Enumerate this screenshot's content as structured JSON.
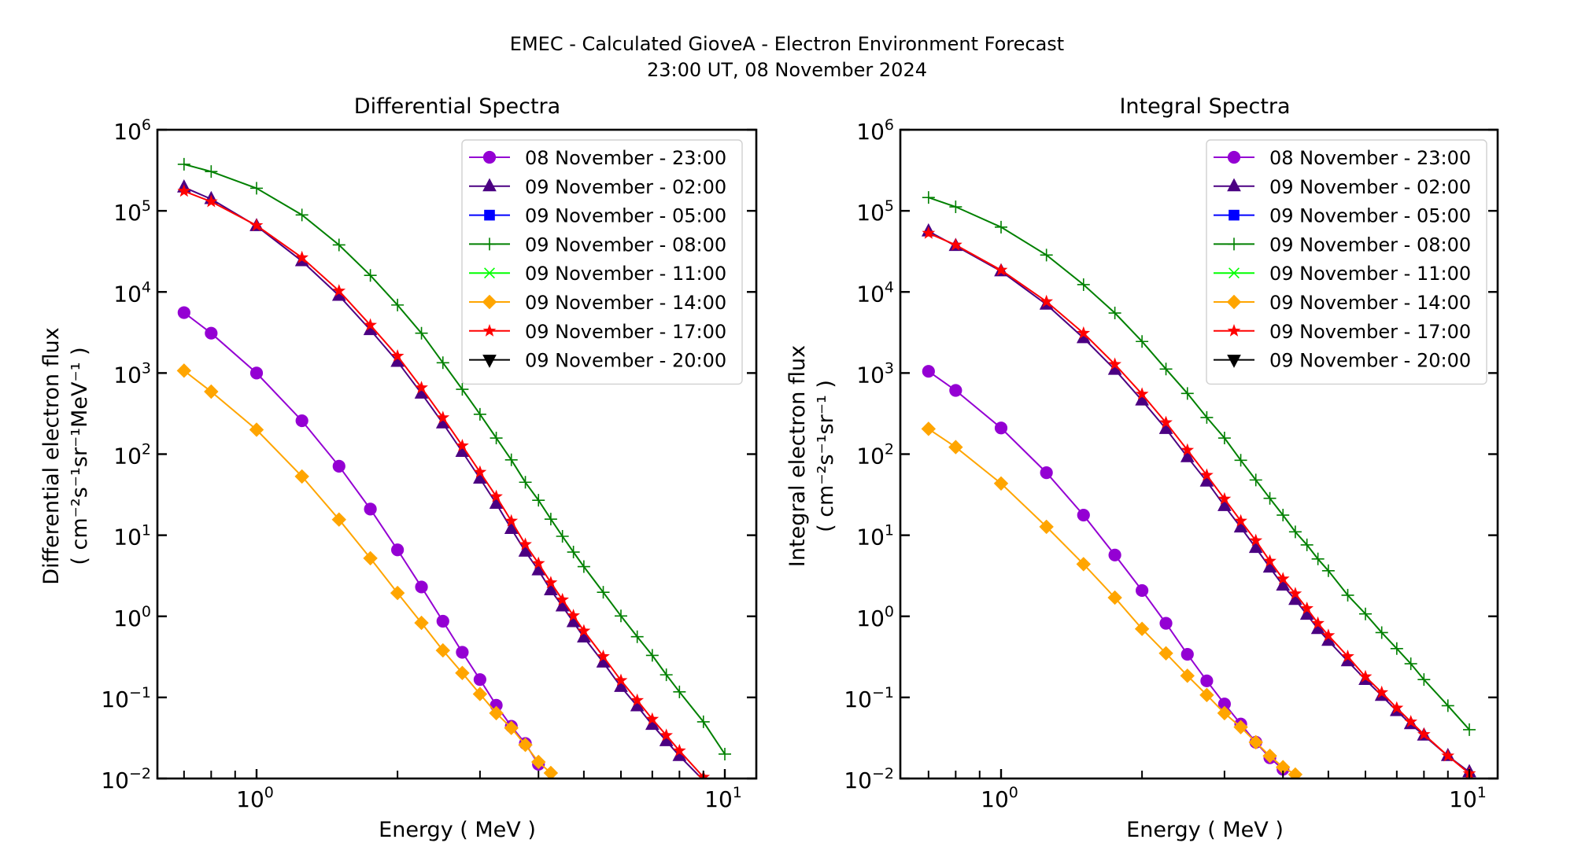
{
  "figure": {
    "title_line1": "EMEC - Calculated GioveA - Electron Environment Forecast",
    "title_line2": "23:00 UT, 08 November 2024"
  },
  "chart_data": [
    {
      "type": "line",
      "title": "Differential Spectra",
      "xlabel": "Energy ( MeV )",
      "ylabel_line1": "Differential electron flux",
      "ylabel_line2": "( cm⁻²s⁻¹sr⁻¹MeV⁻¹ )",
      "xscale": "log",
      "yscale": "log",
      "xlim": [
        0.62,
        11.6
      ],
      "ylim": [
        0.01,
        1000000
      ],
      "x_ticks": [
        {
          "value": 1,
          "label": "10",
          "exp": "0"
        },
        {
          "value": 10,
          "label": "10",
          "exp": "1"
        }
      ],
      "y_ticks": [
        {
          "value": 1000000,
          "label": "10",
          "exp": "6"
        },
        {
          "value": 100000,
          "label": "10",
          "exp": "5"
        },
        {
          "value": 10000,
          "label": "10",
          "exp": "4"
        },
        {
          "value": 1000,
          "label": "10",
          "exp": "3"
        },
        {
          "value": 100,
          "label": "10",
          "exp": "2"
        },
        {
          "value": 10,
          "label": "10",
          "exp": "1"
        },
        {
          "value": 1,
          "label": "10",
          "exp": "0"
        },
        {
          "value": 0.1,
          "label": "10",
          "exp": "−1"
        },
        {
          "value": 0.01,
          "label": "10",
          "exp": "−2"
        }
      ],
      "grid": false,
      "legend_position": "top-right",
      "x": [
        0.7,
        0.8,
        1.0,
        1.25,
        1.5,
        1.75,
        2.0,
        2.25,
        2.5,
        2.75,
        3.0,
        3.25,
        3.5,
        3.75,
        4.0,
        4.25,
        4.5,
        4.75,
        5.0,
        5.5,
        6.0,
        6.5,
        7.0,
        7.5,
        8.0,
        9.0,
        10.0
      ],
      "series": [
        {
          "name": "08 November - 23:00",
          "color": "#9400D3",
          "marker": "circle",
          "values": [
            5560,
            3100,
            1000,
            258,
            71,
            21,
            6.6,
            2.3,
            0.87,
            0.36,
            0.166,
            0.08,
            0.044,
            0.027,
            0.015,
            null,
            null,
            null,
            null,
            null,
            null,
            null,
            null,
            null,
            null,
            null,
            null
          ]
        },
        {
          "name": "09 November - 02:00",
          "color": "#4B0082",
          "marker": "triangle-up",
          "values": [
            195000,
            140000,
            65000,
            24000,
            9000,
            3400,
            1380,
            560,
            240,
            107,
            50,
            24.5,
            12,
            6.3,
            3.7,
            2.1,
            1.33,
            0.85,
            0.55,
            0.27,
            0.135,
            0.078,
            0.046,
            0.029,
            0.019,
            0.0095,
            null
          ]
        },
        {
          "name": "09 November - 05:00",
          "color": "#0000FF",
          "marker": "square",
          "values": []
        },
        {
          "name": "09 November - 08:00",
          "color": "#008000",
          "marker": "plus",
          "values": [
            375000,
            305000,
            190000,
            89000,
            38000,
            16000,
            6900,
            3100,
            1340,
            630,
            310,
            158,
            85,
            45,
            27,
            15.8,
            9.7,
            6.2,
            4.1,
            1.98,
            1.01,
            0.56,
            0.33,
            0.19,
            0.117,
            0.05,
            0.02
          ]
        },
        {
          "name": "09 November - 11:00",
          "color": "#00FF00",
          "marker": "x",
          "values": []
        },
        {
          "name": "09 November - 14:00",
          "color": "#FFA500",
          "marker": "diamond",
          "values": [
            1070,
            590,
            200,
            53,
            15.6,
            5.2,
            1.94,
            0.83,
            0.38,
            0.2,
            0.11,
            0.064,
            0.042,
            0.026,
            0.016,
            0.0117,
            null,
            null,
            null,
            null,
            null,
            null,
            null,
            null,
            null,
            null,
            null
          ]
        },
        {
          "name": "09 November - 17:00",
          "color": "#FF0000",
          "marker": "star",
          "values": [
            175000,
            130000,
            66000,
            26500,
            10300,
            3900,
            1620,
            660,
            282,
            127,
            60,
            30,
            15,
            7.7,
            4.5,
            2.6,
            1.6,
            1.02,
            0.66,
            0.32,
            0.162,
            0.092,
            0.054,
            0.034,
            0.022,
            0.0104,
            null
          ]
        },
        {
          "name": "09 November - 20:00",
          "color": "#000000",
          "marker": "triangle-down",
          "values": []
        }
      ]
    },
    {
      "type": "line",
      "title": "Integral Spectra",
      "xlabel": "Energy ( MeV )",
      "ylabel_line1": "Integral electron flux",
      "ylabel_line2": "( cm⁻²s⁻¹sr⁻¹ )",
      "xscale": "log",
      "yscale": "log",
      "xlim": [
        0.62,
        11.6
      ],
      "ylim": [
        0.01,
        1000000
      ],
      "x_ticks": [
        {
          "value": 1,
          "label": "10",
          "exp": "0"
        },
        {
          "value": 10,
          "label": "10",
          "exp": "1"
        }
      ],
      "y_ticks": [
        {
          "value": 1000000,
          "label": "10",
          "exp": "6"
        },
        {
          "value": 100000,
          "label": "10",
          "exp": "5"
        },
        {
          "value": 10000,
          "label": "10",
          "exp": "4"
        },
        {
          "value": 1000,
          "label": "10",
          "exp": "3"
        },
        {
          "value": 100,
          "label": "10",
          "exp": "2"
        },
        {
          "value": 10,
          "label": "10",
          "exp": "1"
        },
        {
          "value": 1,
          "label": "10",
          "exp": "0"
        },
        {
          "value": 0.1,
          "label": "10",
          "exp": "−1"
        },
        {
          "value": 0.01,
          "label": "10",
          "exp": "−2"
        }
      ],
      "grid": false,
      "legend_position": "top-right",
      "x": [
        0.7,
        0.8,
        1.0,
        1.25,
        1.5,
        1.75,
        2.0,
        2.25,
        2.5,
        2.75,
        3.0,
        3.25,
        3.5,
        3.75,
        4.0,
        4.25,
        4.5,
        4.75,
        5.0,
        5.5,
        6.0,
        6.5,
        7.0,
        7.5,
        8.0,
        9.0,
        10.0
      ],
      "series": [
        {
          "name": "08 November - 23:00",
          "color": "#9400D3",
          "marker": "circle",
          "values": [
            1050,
            610,
            210,
            59,
            17.7,
            5.7,
            2.08,
            0.82,
            0.34,
            0.16,
            0.083,
            0.047,
            0.028,
            0.018,
            0.013,
            null,
            null,
            null,
            null,
            null,
            null,
            null,
            null,
            null,
            null,
            null,
            null
          ]
        },
        {
          "name": "09 November - 02:00",
          "color": "#4B0082",
          "marker": "triangle-up",
          "values": [
            56000,
            37000,
            18000,
            7000,
            2700,
            1100,
            460,
            205,
            92,
            46,
            23,
            12.5,
            7.0,
            4.0,
            2.4,
            1.6,
            1.05,
            0.7,
            0.5,
            0.28,
            0.165,
            0.105,
            0.068,
            0.047,
            0.034,
            0.019,
            0.012
          ]
        },
        {
          "name": "09 November - 05:00",
          "color": "#0000FF",
          "marker": "square",
          "values": []
        },
        {
          "name": "09 November - 08:00",
          "color": "#008000",
          "marker": "plus",
          "values": [
            146000,
            112000,
            63000,
            28500,
            12300,
            5500,
            2450,
            1120,
            560,
            283,
            158,
            84,
            48,
            28.5,
            17.7,
            11,
            7.6,
            5.1,
            3.65,
            1.82,
            1.07,
            0.63,
            0.4,
            0.26,
            0.166,
            0.079,
            0.04
          ]
        },
        {
          "name": "09 November - 11:00",
          "color": "#00FF00",
          "marker": "x",
          "values": []
        },
        {
          "name": "09 November - 14:00",
          "color": "#FFA500",
          "marker": "diamond",
          "values": [
            205,
            122,
            43.5,
            12.7,
            4.4,
            1.7,
            0.7,
            0.35,
            0.185,
            0.107,
            0.064,
            0.043,
            0.028,
            0.019,
            0.0138,
            0.0112,
            null,
            null,
            null,
            null,
            null,
            null,
            null,
            null,
            null,
            null,
            null
          ]
        },
        {
          "name": "09 November - 17:00",
          "color": "#FF0000",
          "marker": "star",
          "values": [
            53000,
            38000,
            18600,
            7600,
            3100,
            1280,
            550,
            245,
            112,
            55,
            28,
            15,
            8.6,
            4.8,
            2.9,
            1.9,
            1.25,
            0.82,
            0.58,
            0.32,
            0.18,
            0.115,
            0.074,
            0.05,
            0.035,
            0.019,
            0.0115
          ]
        },
        {
          "name": "09 November - 20:00",
          "color": "#000000",
          "marker": "triangle-down",
          "values": []
        }
      ]
    }
  ]
}
